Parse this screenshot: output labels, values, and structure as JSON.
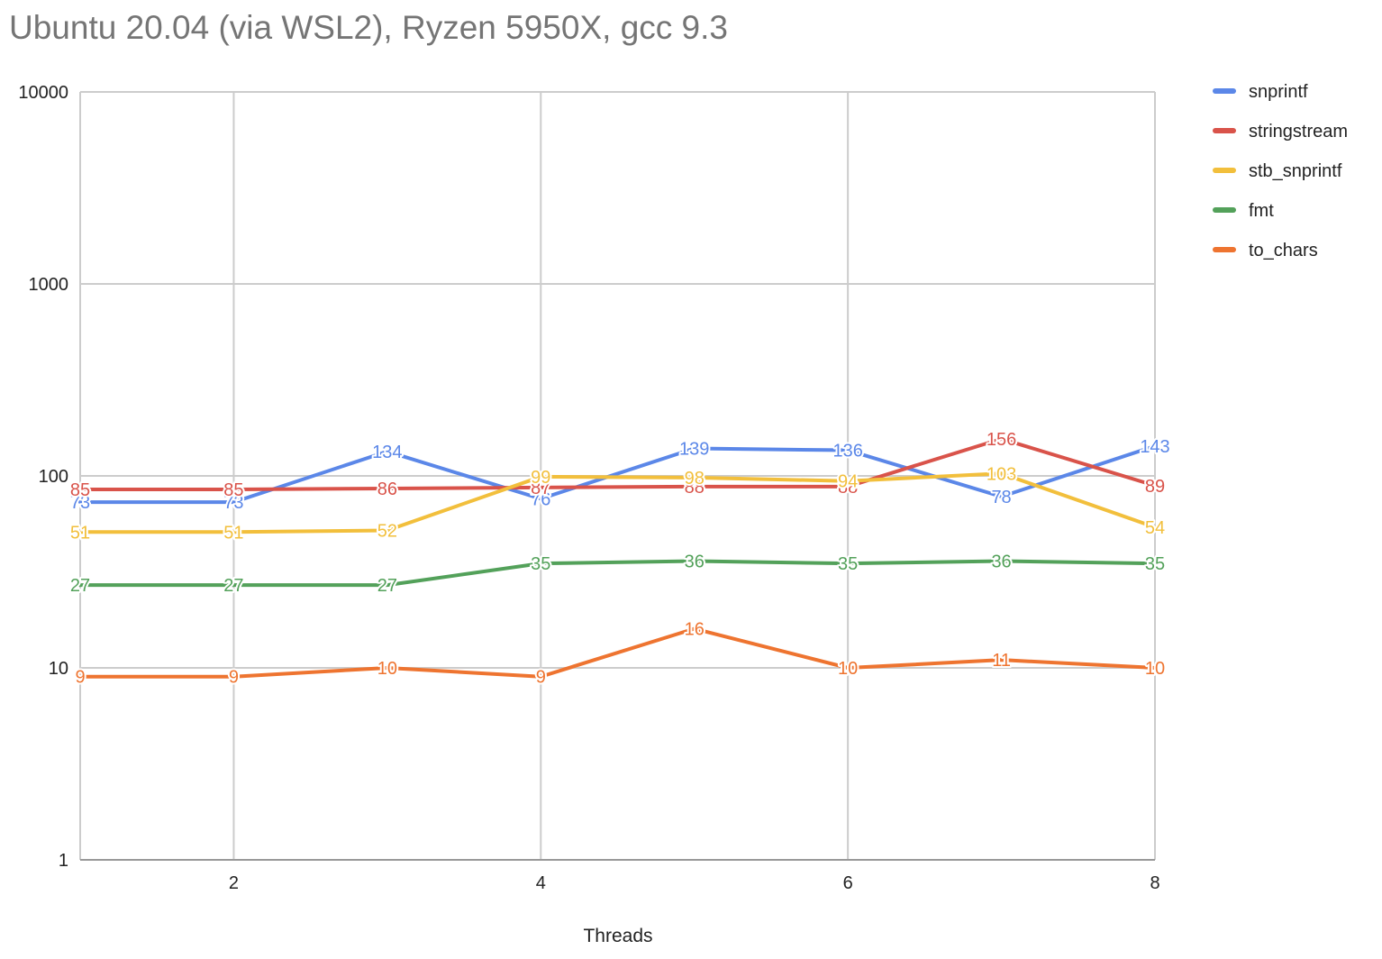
{
  "chart_data": {
    "type": "line",
    "title": "Ubuntu 20.04 (via WSL2), Ryzen 5950X, gcc 9.3",
    "xlabel": "Threads",
    "ylabel": "",
    "x": [
      1,
      2,
      3,
      4,
      5,
      6,
      7,
      8
    ],
    "x_ticks": [
      2,
      4,
      6,
      8
    ],
    "x_range": [
      1,
      8
    ],
    "y_scale": "log",
    "ylim": [
      1,
      10000
    ],
    "y_ticks": [
      1,
      10,
      100,
      1000,
      10000
    ],
    "grid": true,
    "legend_position": "right",
    "series": [
      {
        "name": "snprintf",
        "color": "#5b87e8",
        "values": [
          73,
          73,
          134,
          76,
          139,
          136,
          78,
          143
        ]
      },
      {
        "name": "stringstream",
        "color": "#d9534a",
        "values": [
          85,
          85,
          86,
          87,
          88,
          88,
          156,
          89
        ]
      },
      {
        "name": "stb_snprintf",
        "color": "#f2bf3c",
        "values": [
          51,
          51,
          52,
          99,
          98,
          94,
          103,
          54
        ]
      },
      {
        "name": "fmt",
        "color": "#53a15a",
        "values": [
          27,
          27,
          27,
          35,
          36,
          35,
          36,
          35
        ]
      },
      {
        "name": "to_chars",
        "color": "#ee7430",
        "values": [
          9,
          9,
          10,
          9,
          16,
          10,
          11,
          10
        ]
      }
    ]
  }
}
